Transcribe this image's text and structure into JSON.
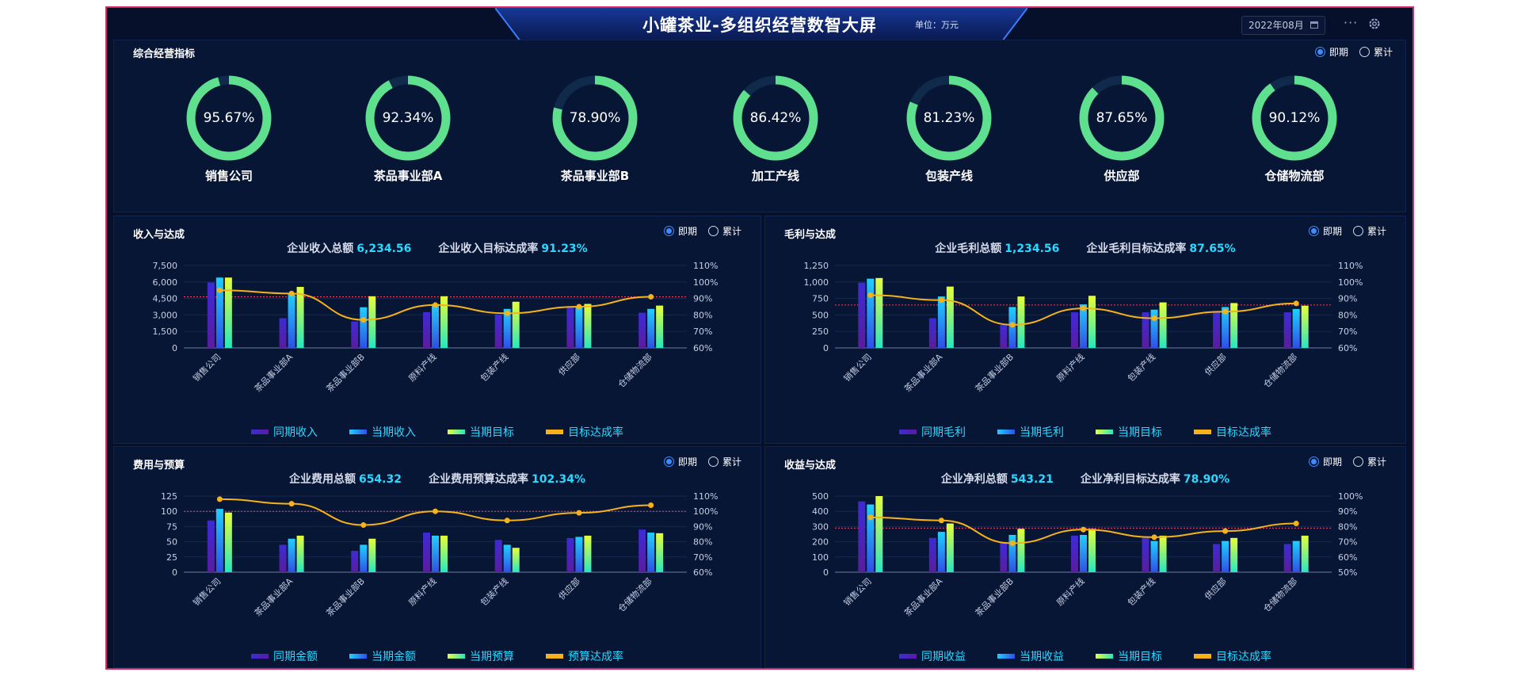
{
  "header": {
    "title": "小罐茶业-多组织经营数智大屏",
    "unit": "单位：万元",
    "date": "2022年08月",
    "more": "···"
  },
  "radio": {
    "a": "即期",
    "b": "累计"
  },
  "overview": {
    "title": "综合经营指标",
    "rings": [
      {
        "label": "销售公司",
        "value": "95.67%",
        "pct": 95.67
      },
      {
        "label": "茶品事业部A",
        "value": "92.34%",
        "pct": 92.34
      },
      {
        "label": "茶品事业部B",
        "value": "78.90%",
        "pct": 78.9
      },
      {
        "label": "加工产线",
        "value": "86.42%",
        "pct": 86.42
      },
      {
        "label": "包装产线",
        "value": "81.23%",
        "pct": 81.23
      },
      {
        "label": "供应部",
        "value": "87.65%",
        "pct": 87.65
      },
      {
        "label": "仓储物流部",
        "value": "90.12%",
        "pct": 90.12
      }
    ]
  },
  "colors": {
    "prev": "#5b2bd8",
    "cur": "#2f8cff",
    "target": "#5cf08a",
    "rate": "#f5b21b",
    "ring": "#5ee08f",
    "ref": "#ff3b5c"
  },
  "chart_data": [
    {
      "type": "bar",
      "title": "收入与达成",
      "stat1_label": "企业收入总额",
      "stat1_value": "6,234.56",
      "stat2_label": "企业收入目标达成率",
      "stat2_value": "91.23%",
      "categories": [
        "销售公司",
        "茶品事业部A",
        "茶品事业部B",
        "原料产线",
        "包装产线",
        "供应部",
        "仓储物流部"
      ],
      "ylim": [
        0,
        7500
      ],
      "yticks": [
        "0",
        "1,500",
        "3,000",
        "4,500",
        "6,000",
        "7,500"
      ],
      "y2lim": [
        60,
        110
      ],
      "y2ticks": [
        "60%",
        "70%",
        "80%",
        "90%",
        "100%",
        "110%"
      ],
      "ref_line": 91,
      "series": [
        {
          "name": "同期收入",
          "kind": "bar",
          "values": [
            5950,
            2700,
            2400,
            3250,
            3050,
            3700,
            3200
          ]
        },
        {
          "name": "当期收入",
          "kind": "bar",
          "values": [
            6400,
            4950,
            3700,
            4000,
            3550,
            3750,
            3550
          ]
        },
        {
          "name": "当期目标",
          "kind": "bar",
          "values": [
            6400,
            5550,
            4700,
            4700,
            4200,
            4000,
            3850
          ]
        },
        {
          "name": "目标达成率",
          "kind": "line",
          "values": [
            95,
            93,
            77,
            86,
            81,
            85,
            91
          ]
        }
      ]
    },
    {
      "type": "bar",
      "title": "毛利与达成",
      "stat1_label": "企业毛利总额",
      "stat1_value": "1,234.56",
      "stat2_label": "企业毛利目标达成率",
      "stat2_value": "87.65%",
      "categories": [
        "销售公司",
        "茶品事业部A",
        "茶品事业部B",
        "原料产线",
        "包装产线",
        "供应部",
        "仓储物流部"
      ],
      "ylim": [
        0,
        1250
      ],
      "yticks": [
        "0",
        "250",
        "500",
        "750",
        "1,000",
        "1,250"
      ],
      "y2lim": [
        60,
        110
      ],
      "y2ticks": [
        "60%",
        "70%",
        "80%",
        "90%",
        "100%",
        "110%"
      ],
      "ref_line": 86,
      "series": [
        {
          "name": "同期毛利",
          "kind": "bar",
          "values": [
            990,
            450,
            350,
            540,
            540,
            560,
            540
          ]
        },
        {
          "name": "当期毛利",
          "kind": "bar",
          "values": [
            1050,
            780,
            620,
            660,
            580,
            620,
            590
          ]
        },
        {
          "name": "当期目标",
          "kind": "bar",
          "values": [
            1060,
            930,
            780,
            790,
            690,
            680,
            640
          ]
        },
        {
          "name": "目标达成率",
          "kind": "line",
          "values": [
            92,
            89,
            74,
            84,
            78,
            82,
            87
          ]
        }
      ]
    },
    {
      "type": "bar",
      "title": "费用与预算",
      "stat1_label": "企业费用总额",
      "stat1_value": "654.32",
      "stat2_label": "企业费用预算达成率",
      "stat2_value": "102.34%",
      "categories": [
        "销售公司",
        "茶品事业部A",
        "茶品事业部B",
        "原料产线",
        "包装产线",
        "供应部",
        "仓储物流部"
      ],
      "ylim": [
        0,
        125
      ],
      "yticks": [
        "0",
        "25",
        "50",
        "75",
        "100",
        "125"
      ],
      "y2lim": [
        60,
        110
      ],
      "y2ticks": [
        "60%",
        "70%",
        "80%",
        "90%",
        "100%",
        "110%"
      ],
      "ref_line": 100,
      "series": [
        {
          "name": "同期金额",
          "kind": "bar",
          "values": [
            85,
            45,
            35,
            65,
            53,
            56,
            70
          ]
        },
        {
          "name": "当期金额",
          "kind": "bar",
          "values": [
            104,
            55,
            45,
            60,
            45,
            58,
            65
          ]
        },
        {
          "name": "当期预算",
          "kind": "bar",
          "values": [
            98,
            60,
            55,
            60,
            40,
            60,
            64
          ]
        },
        {
          "name": "预算达成率",
          "kind": "line",
          "values": [
            108,
            105,
            91,
            100,
            94,
            99,
            104
          ]
        }
      ]
    },
    {
      "type": "bar",
      "title": "收益与达成",
      "stat1_label": "企业净利总额",
      "stat1_value": "543.21",
      "stat2_label": "企业净利目标达成率",
      "stat2_value": "78.90%",
      "categories": [
        "销售公司",
        "茶品事业部A",
        "茶品事业部B",
        "原料产线",
        "包装产线",
        "供应部",
        "仓储物流部"
      ],
      "ylim": [
        0,
        500
      ],
      "yticks": [
        "0",
        "100",
        "200",
        "300",
        "400",
        "500"
      ],
      "y2lim": [
        50,
        100
      ],
      "y2ticks": [
        "50%",
        "60%",
        "70%",
        "80%",
        "90%",
        "100%"
      ],
      "ref_line": 79,
      "series": [
        {
          "name": "同期收益",
          "kind": "bar",
          "values": [
            465,
            225,
            195,
            240,
            225,
            185,
            185
          ]
        },
        {
          "name": "当期收益",
          "kind": "bar",
          "values": [
            445,
            265,
            245,
            245,
            205,
            205,
            205
          ]
        },
        {
          "name": "当期目标",
          "kind": "bar",
          "values": [
            500,
            320,
            285,
            285,
            240,
            225,
            240
          ]
        },
        {
          "name": "目标达成率",
          "kind": "line",
          "values": [
            86,
            84,
            69,
            78,
            73,
            77,
            82
          ]
        }
      ]
    }
  ]
}
